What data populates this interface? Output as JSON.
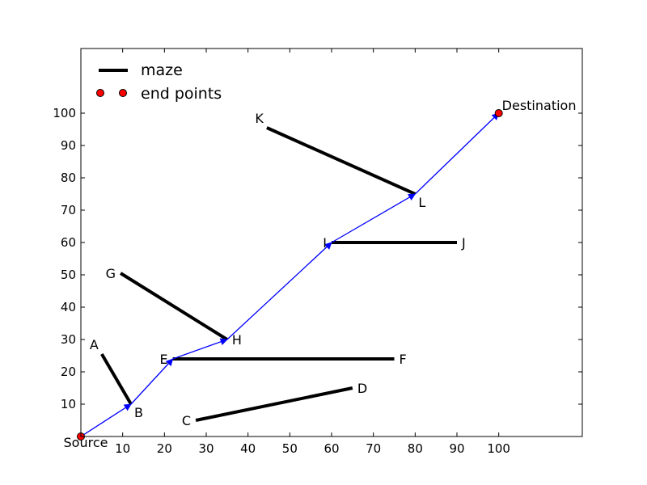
{
  "chart_data": {
    "type": "line",
    "title": "",
    "xlabel": "",
    "ylabel": "",
    "xlim": [
      0,
      120
    ],
    "ylim": [
      0,
      120
    ],
    "xticks": [
      10,
      20,
      30,
      40,
      50,
      60,
      70,
      80,
      90,
      100
    ],
    "yticks": [
      10,
      20,
      30,
      40,
      50,
      60,
      70,
      80,
      90,
      100
    ],
    "grid": false,
    "legend": {
      "placement": "top-left",
      "entries": [
        {
          "label": "maze",
          "style": "thick-line",
          "color": "#000000"
        },
        {
          "label": "end points",
          "style": "red-marker",
          "color": "#ff0000"
        }
      ]
    },
    "maze_segments": [
      {
        "from": "A",
        "to": "B",
        "x1": 5,
        "y1": 25.5,
        "x2": 12,
        "y2": 10
      },
      {
        "from": "C",
        "to": "D",
        "x1": 27.5,
        "y1": 5,
        "x2": 65,
        "y2": 15
      },
      {
        "from": "E",
        "to": "F",
        "x1": 22,
        "y1": 24,
        "x2": 75,
        "y2": 24
      },
      {
        "from": "G",
        "to": "H",
        "x1": 9.5,
        "y1": 50.5,
        "x2": 35,
        "y2": 30
      },
      {
        "from": "I",
        "to": "J",
        "x1": 60,
        "y1": 60,
        "x2": 90,
        "y2": 60
      },
      {
        "from": "K",
        "to": "L",
        "x1": 44.5,
        "y1": 95.5,
        "x2": 80,
        "y2": 75
      }
    ],
    "path": [
      {
        "label": "Source",
        "x": 0,
        "y": 0
      },
      {
        "label": "B",
        "x": 12,
        "y": 10
      },
      {
        "label": "E",
        "x": 22,
        "y": 24
      },
      {
        "label": "H",
        "x": 35,
        "y": 30
      },
      {
        "label": "I",
        "x": 60,
        "y": 60
      },
      {
        "label": "L",
        "x": 80,
        "y": 75
      },
      {
        "label": "Destination",
        "x": 100,
        "y": 100
      }
    ],
    "end_points": [
      {
        "label": "Source",
        "x": 0,
        "y": 0
      },
      {
        "label": "Destination",
        "x": 100,
        "y": 100
      }
    ],
    "point_labels": [
      {
        "text": "A",
        "x": 5,
        "y": 25.5,
        "pos": "above-left"
      },
      {
        "text": "B",
        "x": 12,
        "y": 10,
        "pos": "below-right"
      },
      {
        "text": "C",
        "x": 27.5,
        "y": 5,
        "pos": "left"
      },
      {
        "text": "D",
        "x": 65,
        "y": 15,
        "pos": "right"
      },
      {
        "text": "E",
        "x": 22,
        "y": 24,
        "pos": "left"
      },
      {
        "text": "F",
        "x": 75,
        "y": 24,
        "pos": "right"
      },
      {
        "text": "G",
        "x": 9.5,
        "y": 50.5,
        "pos": "left"
      },
      {
        "text": "H",
        "x": 35,
        "y": 30,
        "pos": "right"
      },
      {
        "text": "I",
        "x": 60,
        "y": 60,
        "pos": "left"
      },
      {
        "text": "J",
        "x": 90,
        "y": 60,
        "pos": "right"
      },
      {
        "text": "K",
        "x": 44.5,
        "y": 95.5,
        "pos": "above-left"
      },
      {
        "text": "L",
        "x": 80,
        "y": 75,
        "pos": "below-right"
      },
      {
        "text": "Source",
        "x": 0,
        "y": 0,
        "pos": "below"
      },
      {
        "text": "Destination",
        "x": 100,
        "y": 100,
        "pos": "above-right"
      }
    ],
    "colors": {
      "maze": "#000000",
      "path": "#0000ff",
      "end_points": "#ff0000"
    }
  }
}
